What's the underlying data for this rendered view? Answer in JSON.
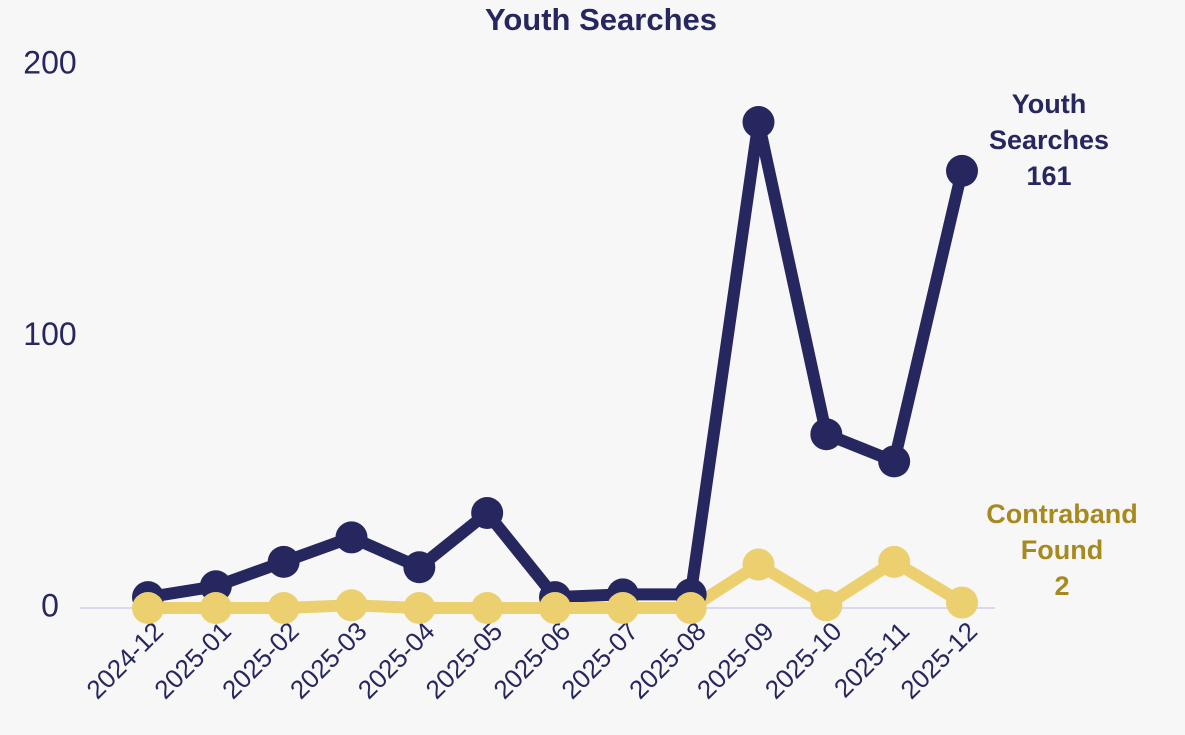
{
  "chart_data": {
    "type": "line",
    "title": "Youth Searches",
    "categories": [
      "2024-12",
      "2025-01",
      "2025-02",
      "2025-03",
      "2025-04",
      "2025-05",
      "2025-06",
      "2025-07",
      "2025-08",
      "2025-09",
      "2025-10",
      "2025-11",
      "2025-12"
    ],
    "series": [
      {
        "name": "Youth Searches",
        "color": "#27275f",
        "label_color": "#27275f",
        "values": [
          4,
          8,
          17,
          26,
          15,
          35,
          4,
          5,
          5,
          179,
          64,
          54,
          161
        ]
      },
      {
        "name": "Contraband Found",
        "color": "#ecd06f",
        "label_color": "#a68a1f",
        "values": [
          0,
          0,
          0,
          1,
          0,
          0,
          0,
          0,
          0,
          16,
          1,
          17,
          2
        ]
      }
    ],
    "ylim": [
      0,
      200
    ],
    "yticks": [
      0,
      100,
      200
    ],
    "grid": false
  }
}
